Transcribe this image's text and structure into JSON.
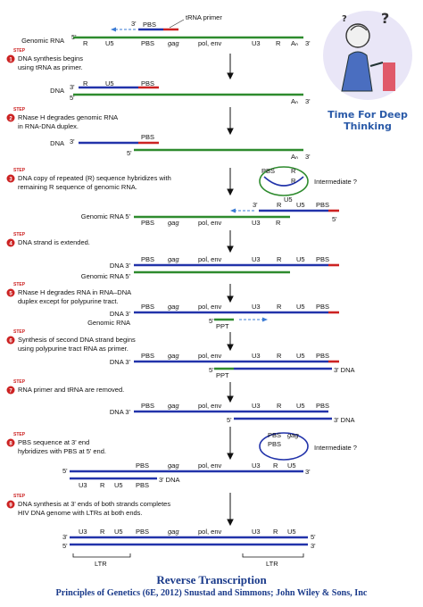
{
  "brand": {
    "line1": "Time For Deep",
    "line2": "Thinking"
  },
  "footer": {
    "title": "Reverse Transcription",
    "credit": "Principles of Genetics (6E, 2012) Snustad and Simmons; John Wiley & Sons, Inc"
  },
  "labels": {
    "genomic_rna": "Genomic RNA",
    "genomic_rna_5": "Genomic RNA 5'",
    "dna": "DNA",
    "dna_3": "DNA 3'",
    "trna_primer": "tRNA primer",
    "intermediate": "Intermediate ?",
    "ppt": "PPT",
    "ltr": "LTR",
    "dna_3prime": "3' DNA"
  },
  "segments": {
    "R": "R",
    "U5": "U5",
    "PBS": "PBS",
    "gag": "gag",
    "pol_env": "pol, env",
    "U3": "U3",
    "An": "Aₙ",
    "p3": "3'",
    "p5": "5'"
  },
  "steps": [
    {
      "n": "1",
      "word": "STEP",
      "lines": [
        "DNA synthesis begins",
        "using tRNA as primer."
      ]
    },
    {
      "n": "2",
      "word": "STEP",
      "lines": [
        "RNase H degrades genomic RNA",
        "in RNA-DNA duplex."
      ]
    },
    {
      "n": "3",
      "word": "STEP",
      "lines": [
        "DNA copy of repeated (R) sequence hybridizes with",
        "remaining R sequence of genomic RNA."
      ]
    },
    {
      "n": "4",
      "word": "STEP",
      "lines": [
        "DNA strand is extended."
      ]
    },
    {
      "n": "5",
      "word": "STEP",
      "lines": [
        "RNase H degrades RNA in RNA–DNA",
        "duplex except for polypurine tract."
      ]
    },
    {
      "n": "6",
      "word": "STEP",
      "lines": [
        "Synthesis of second DNA strand begins",
        "using polypurine tract RNA as primer."
      ]
    },
    {
      "n": "7",
      "word": "STEP",
      "lines": [
        "RNA primer and tRNA are removed."
      ]
    },
    {
      "n": "8",
      "word": "STEP",
      "lines": [
        "PBS sequence at 3' end",
        "hybridizes with PBS at 5' end."
      ]
    },
    {
      "n": "9",
      "word": "STEP",
      "lines": [
        "DNA synthesis at 3' ends of both strands completes",
        "HIV DNA genome with LTRs at both ends."
      ]
    }
  ],
  "colors": {
    "rna": "#2e8b2e",
    "dna": "#2233aa",
    "trna": "#cc2222",
    "title": "#1a3a8a"
  }
}
